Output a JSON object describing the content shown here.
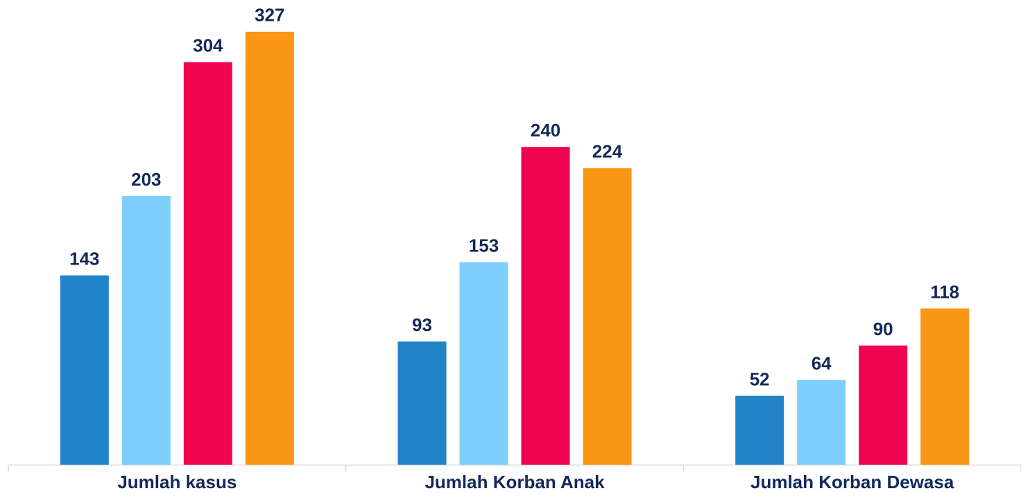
{
  "chart_data": {
    "type": "bar",
    "categories": [
      "Jumlah kasus",
      "Jumlah Korban Anak",
      "Jumlah Korban Dewasa"
    ],
    "series": [
      {
        "color": "#2184c8",
        "values": [
          143,
          93,
          52
        ]
      },
      {
        "color": "#7fcdfb",
        "values": [
          203,
          153,
          64
        ]
      },
      {
        "color": "#f0044f",
        "values": [
          304,
          240,
          90
        ]
      },
      {
        "color": "#fb9716",
        "values": [
          327,
          224,
          118
        ]
      }
    ],
    "ylim": [
      0,
      340
    ]
  }
}
